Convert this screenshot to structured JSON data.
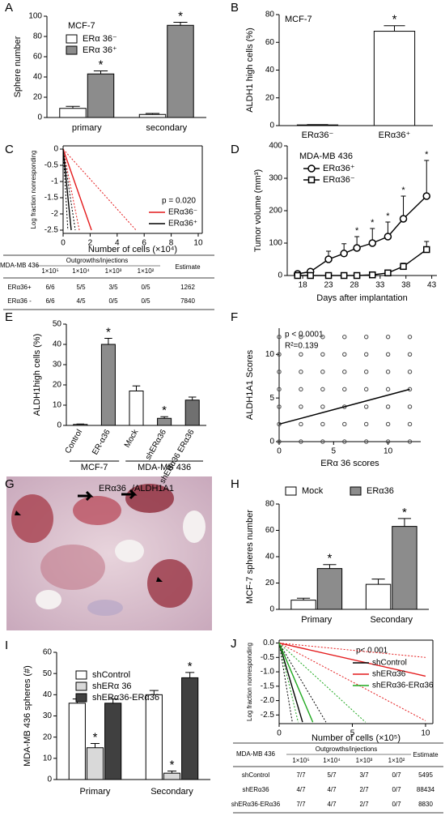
{
  "chart_data": [
    {
      "panel": "A",
      "type": "bar",
      "title": "MCF-7",
      "ylabel": "Sphere number",
      "categories": [
        "primary",
        "secondary"
      ],
      "series": [
        {
          "name": "ERα 36⁻",
          "color": "#ffffff",
          "values": [
            9,
            3
          ],
          "errors": [
            2,
            1
          ]
        },
        {
          "name": "ERα 36⁺",
          "color": "#8c8c8c",
          "values": [
            43,
            91
          ],
          "errors": [
            3,
            3
          ],
          "stars": [
            "*",
            "*"
          ]
        }
      ],
      "ylim": [
        0,
        100
      ],
      "yticks": [
        0,
        20,
        40,
        60,
        80,
        100
      ],
      "legend": "top-left"
    },
    {
      "panel": "B",
      "type": "bar",
      "title": "MCF-7",
      "ylabel": "ALDH1 high cells (%)",
      "categories": [
        "ERα36⁻",
        "ERα36⁺"
      ],
      "series": [
        {
          "color": "#ffffff",
          "values": [
            0.5,
            68
          ],
          "errors": [
            0.2,
            4
          ],
          "stars": [
            null,
            "*"
          ]
        }
      ],
      "ylim": [
        0,
        80
      ],
      "yticks": [
        0,
        20,
        40,
        60,
        80
      ]
    },
    {
      "panel": "C",
      "type": "line",
      "xlabel": "Number of cells (×10⁴)",
      "ylabel": "Log fraction nonresponding",
      "annotations": [
        "p = 0.020"
      ],
      "series": [
        {
          "name": "ERα36⁻",
          "color": "#e41a1c",
          "x": [
            0,
            2.1
          ],
          "values": [
            0,
            -2.5
          ]
        },
        {
          "name": "ERα36⁺",
          "color": "#000000",
          "x": [
            0,
            0.6
          ],
          "values": [
            0,
            -2.5
          ]
        },
        {
          "color": "#e41a1c",
          "dashed": true,
          "x": [
            0,
            5.4
          ],
          "values": [
            0,
            -2.5
          ]
        },
        {
          "color": "#e41a1c",
          "dashed": true,
          "x": [
            0,
            1.2
          ],
          "values": [
            0,
            -2.5
          ]
        },
        {
          "color": "#000000",
          "dashed": true,
          "x": [
            0,
            0.35
          ],
          "values": [
            0,
            -2.5
          ]
        },
        {
          "color": "#000000",
          "dashed": true,
          "x": [
            0,
            0.9
          ],
          "values": [
            0,
            -2.5
          ]
        }
      ],
      "xlim": [
        0,
        10.3
      ],
      "xticks": [
        0,
        2,
        4,
        6,
        8,
        10
      ],
      "ylim": [
        -2.6,
        0.1
      ],
      "yticks": [
        0,
        -0.5,
        -1,
        -1.5,
        -2,
        -2.5
      ],
      "legend": "right",
      "table": {
        "corner": "MDA-MB 436",
        "group": "Outgrowths/injections",
        "estimate": "Estimate",
        "columns": [
          "1×10⁵",
          "1×10⁴",
          "1×10³",
          "1×10²"
        ],
        "rows": [
          [
            "ERα36+",
            "6/6",
            "5/5",
            "3/5",
            "0/5",
            1262
          ],
          [
            "ERα36 -",
            "6/6",
            "4/5",
            "0/5",
            "0/5",
            7840
          ]
        ]
      }
    },
    {
      "panel": "D",
      "type": "line",
      "title": "MDA-MB 436",
      "xlabel": "Days after implantation",
      "ylabel": "Tumor volume (mm³)",
      "x": [
        17,
        19.5,
        23,
        26,
        28.5,
        31.5,
        34.5,
        37.5,
        42
      ],
      "series": [
        {
          "name": "ERα36⁺",
          "color": "#000000",
          "marker": "circle",
          "values": [
            5,
            12,
            50,
            68,
            85,
            100,
            120,
            175,
            245
          ],
          "errors": [
            5,
            8,
            25,
            30,
            35,
            45,
            45,
            70,
            110
          ],
          "stars": [
            null,
            null,
            null,
            null,
            "*",
            "*",
            "*",
            "*",
            "*"
          ]
        },
        {
          "name": "ERα36⁻",
          "color": "#000000",
          "marker": "square",
          "values": [
            0,
            0,
            0,
            0,
            0,
            2,
            8,
            28,
            80
          ],
          "errors": [
            0,
            0,
            0,
            0,
            0,
            2,
            5,
            10,
            25
          ]
        }
      ],
      "xlim": [
        15,
        44
      ],
      "xticks": [
        18,
        23,
        28,
        33,
        38,
        43
      ],
      "ylim": [
        0,
        400
      ],
      "yticks": [
        0,
        100,
        200,
        300,
        400
      ],
      "legend": "top-left"
    },
    {
      "panel": "E",
      "type": "bar",
      "ylabel": "ALDH1high cells (%)",
      "categories": [
        "Control",
        "ER-α36",
        "Mock",
        "shERα36",
        "shERα36 ERα36"
      ],
      "series": [
        {
          "colors": [
            "#ffffff",
            "#8c8c8c",
            "#ffffff",
            "#8c8c8c",
            "#707070"
          ],
          "values": [
            0.5,
            40,
            17,
            3.5,
            12.5
          ],
          "errors": [
            0.2,
            3,
            2.5,
            0.8,
            1.5
          ],
          "stars": [
            null,
            "*",
            null,
            "*",
            null
          ]
        }
      ],
      "group_labels": [
        "MCF-7",
        "MDA-MB 436"
      ],
      "ylim": [
        0,
        50
      ],
      "yticks": [
        0,
        10,
        20,
        30,
        40,
        50
      ]
    },
    {
      "panel": "F",
      "type": "scatter",
      "xlabel": "ERα 36 scores",
      "ylabel": "ALDH1A1 Scores",
      "annotations": [
        "p < 0.0001",
        "R²=0.139"
      ],
      "x": [
        0,
        0,
        0,
        0,
        0,
        0,
        0,
        2,
        2,
        2,
        2,
        2,
        2,
        2,
        4,
        4,
        4,
        4,
        4,
        4,
        4,
        6,
        6,
        6,
        6,
        6,
        6,
        6,
        8,
        8,
        8,
        8,
        8,
        8,
        8,
        10,
        10,
        10,
        10,
        10,
        10,
        10,
        12,
        12,
        12,
        12,
        12,
        12,
        12
      ],
      "values": [
        0,
        2,
        4,
        6,
        8,
        10,
        12,
        0,
        2,
        4,
        6,
        8,
        10,
        12,
        0,
        2,
        4,
        6,
        8,
        10,
        12,
        0,
        2,
        4,
        6,
        8,
        10,
        12,
        0,
        2,
        4,
        6,
        8,
        10,
        12,
        0,
        2,
        4,
        6,
        8,
        10,
        12,
        0,
        2,
        4,
        6,
        8,
        10,
        12
      ],
      "fit": {
        "x": [
          0,
          12
        ],
        "values": [
          2,
          6
        ]
      },
      "xlim": [
        0,
        13
      ],
      "xticks": [
        0,
        5,
        10
      ],
      "ylim": [
        0,
        13
      ],
      "yticks": [
        0,
        5,
        10
      ]
    },
    {
      "panel": "G",
      "type": "image",
      "labels": [
        "ERα36",
        "/ALDH1A1"
      ]
    },
    {
      "panel": "H",
      "type": "bar",
      "ylabel": "MCF-7 spheres number",
      "categories": [
        "Primary",
        "Secondary"
      ],
      "series": [
        {
          "name": "Mock",
          "color": "#ffffff",
          "values": [
            7,
            19
          ],
          "errors": [
            1.5,
            4
          ]
        },
        {
          "name": "ERα36",
          "color": "#8c8c8c",
          "values": [
            31,
            63
          ],
          "errors": [
            3,
            6
          ],
          "stars": [
            "*",
            "*"
          ]
        }
      ],
      "ylim": [
        0,
        80
      ],
      "yticks": [
        0,
        20,
        40,
        60,
        80
      ],
      "legend": "top"
    },
    {
      "panel": "I",
      "type": "bar",
      "ylabel": "MDA-MB 436 spheres (#)",
      "categories": [
        "Primary",
        "Secondary"
      ],
      "series": [
        {
          "name": "shControl",
          "color": "#ffffff",
          "values": [
            36,
            40
          ],
          "errors": [
            2,
            2
          ]
        },
        {
          "name": "shERα 36",
          "color": "#d9d9d9",
          "values": [
            15,
            3
          ],
          "errors": [
            2,
            1
          ],
          "stars": [
            "*",
            "*"
          ]
        },
        {
          "name": "shERα36-ERα36",
          "color": "#404040",
          "values": [
            36,
            48
          ],
          "errors": [
            2,
            2.5
          ],
          "stars": [
            null,
            "*"
          ]
        }
      ],
      "ylim": [
        0,
        60
      ],
      "yticks": [
        0,
        10,
        20,
        30,
        40,
        50,
        60
      ],
      "legend": "top-left"
    },
    {
      "panel": "J",
      "type": "line",
      "xlabel": "Number of cells (×10⁵)",
      "ylabel": "Log fraction nonresponding",
      "annotations": [
        "p< 0.001"
      ],
      "series": [
        {
          "name": "shControl",
          "color": "#000000",
          "x": [
            0,
            1.6
          ],
          "values": [
            0,
            -2.75
          ]
        },
        {
          "name": "shERα36",
          "color": "#e41a1c",
          "x": [
            0,
            10
          ],
          "values": [
            0,
            -1.15
          ]
        },
        {
          "name": "shERα36-ERα36",
          "color": "#1fa81f",
          "x": [
            0,
            2.3
          ],
          "values": [
            0,
            -2.75
          ]
        },
        {
          "color": "#000000",
          "dashed": true,
          "x": [
            0,
            0.9
          ],
          "values": [
            0,
            -2.75
          ]
        },
        {
          "color": "#000000",
          "dashed": true,
          "x": [
            0,
            3.2
          ],
          "values": [
            0,
            -2.75
          ]
        },
        {
          "color": "#e41a1c",
          "dashed": true,
          "x": [
            0,
            10
          ],
          "values": [
            0,
            -0.5
          ]
        },
        {
          "color": "#e41a1c",
          "dashed": true,
          "x": [
            0,
            10
          ],
          "values": [
            0,
            -2.7
          ]
        },
        {
          "color": "#1fa81f",
          "dashed": true,
          "x": [
            0,
            1.3
          ],
          "values": [
            0,
            -2.75
          ]
        },
        {
          "color": "#1fa81f",
          "dashed": true,
          "x": [
            0,
            5.9
          ],
          "values": [
            0,
            -2.75
          ]
        }
      ],
      "xlim": [
        0,
        10.5
      ],
      "xticks": [
        0,
        5,
        10
      ],
      "ylim": [
        -2.8,
        0.1
      ],
      "yticks": [
        {
          "value": 0,
          "label": "0.0"
        },
        {
          "value": -0.5,
          "label": "-0.5"
        },
        {
          "value": -1,
          "label": "-1.0"
        },
        {
          "value": -1.5,
          "label": "-1.5"
        },
        {
          "value": -2,
          "label": "-2.0"
        },
        {
          "value": -2.5,
          "label": "-2.5"
        }
      ],
      "legend": "top-right",
      "table": {
        "corner": "MDA-MB 436",
        "group": "Outgrowths/injections",
        "estimate": "Estimate",
        "columns": [
          "1×10⁵",
          "1×10⁴",
          "1×10³",
          "1×10²"
        ],
        "rows": [
          [
            "shControl",
            "7/7",
            "5/7",
            "3/7",
            "0/7",
            5495
          ],
          [
            "shERα36",
            "4/7",
            "4/7",
            "2/7",
            "0/7",
            88434
          ],
          [
            "shERα36-ERα36",
            "7/7",
            "4/7",
            "2/7",
            "0/7",
            8830
          ]
        ]
      }
    }
  ]
}
